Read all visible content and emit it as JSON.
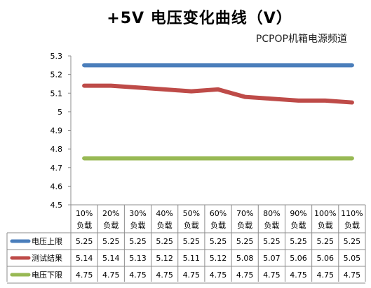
{
  "chart_data": {
    "type": "line",
    "title": "+5V 电压变化曲线（V）",
    "subtitle": "PCPOP机箱电源频道",
    "categories": [
      [
        "10%",
        "负载"
      ],
      [
        "20%",
        "负载"
      ],
      [
        "30%",
        "负载"
      ],
      [
        "40%",
        "负载"
      ],
      [
        "50%",
        "负载"
      ],
      [
        "60%",
        "负载"
      ],
      [
        "70%",
        "负载"
      ],
      [
        "80%",
        "负载"
      ],
      [
        "90%",
        "负载"
      ],
      [
        "100%",
        "负载"
      ],
      [
        "110%",
        "负载"
      ]
    ],
    "ylim": [
      4.5,
      5.3
    ],
    "yticks": [
      "5.3",
      "5.2",
      "5.1",
      "5",
      "4.9",
      "4.8",
      "4.7",
      "4.6",
      "4.5"
    ],
    "grid": false,
    "legend": "data-table",
    "series": [
      {
        "name": "电压上限",
        "color": "#4a7ebb",
        "values": [
          5.25,
          5.25,
          5.25,
          5.25,
          5.25,
          5.25,
          5.25,
          5.25,
          5.25,
          5.25,
          5.25
        ],
        "labels": [
          "5.25",
          "5.25",
          "5.25",
          "5.25",
          "5.25",
          "5.25",
          "5.25",
          "5.25",
          "5.25",
          "5.25",
          "5.25"
        ]
      },
      {
        "name": "测试结果",
        "color": "#be4b48",
        "values": [
          5.14,
          5.14,
          5.13,
          5.12,
          5.11,
          5.12,
          5.08,
          5.07,
          5.06,
          5.06,
          5.05
        ],
        "labels": [
          "5.14",
          "5.14",
          "5.13",
          "5.12",
          "5.11",
          "5.12",
          "5.08",
          "5.07",
          "5.06",
          "5.06",
          "5.05"
        ]
      },
      {
        "name": "电压下限",
        "color": "#98b954",
        "values": [
          4.75,
          4.75,
          4.75,
          4.75,
          4.75,
          4.75,
          4.75,
          4.75,
          4.75,
          4.75,
          4.75
        ],
        "labels": [
          "4.75",
          "4.75",
          "4.75",
          "4.75",
          "4.75",
          "4.75",
          "4.75",
          "4.75",
          "4.75",
          "4.75",
          "4.75"
        ]
      }
    ]
  }
}
